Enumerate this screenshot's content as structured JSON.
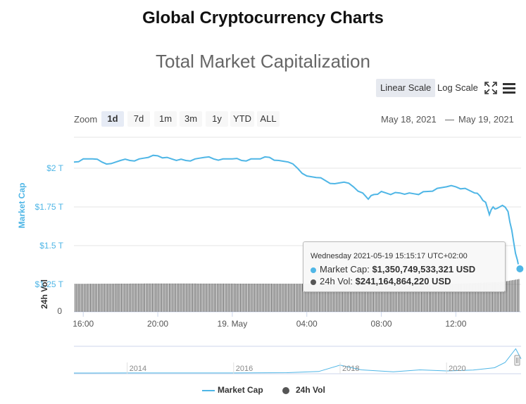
{
  "header": {
    "title": "Global Cryptocurrency Charts"
  },
  "toolbar": {
    "linear_label": "Linear Scale",
    "log_label": "Log Scale",
    "fullscreen_icon": "fullscreen-icon",
    "menu_icon": "hamburger-menu-icon"
  },
  "zoom": {
    "label": "Zoom",
    "buttons": [
      "1d",
      "7d",
      "1m",
      "3m",
      "1y",
      "YTD",
      "ALL"
    ],
    "selected": "1d"
  },
  "range": {
    "from": "May 18, 2021",
    "to": "May 19, 2021",
    "separator": "—"
  },
  "tooltip": {
    "date": "Wednesday 2021-05-19 15:15:17 UTC+02:00",
    "market_cap_label": "Market Cap:",
    "market_cap_value": "$1,350,749,533,321 USD",
    "vol_label": "24h Vol:",
    "vol_value": "$241,164,864,220 USD"
  },
  "legend": {
    "market_cap": "Market Cap",
    "vol": "24h Vol"
  },
  "colors": {
    "market_cap": "#4fb6e6",
    "volume": "#555555"
  },
  "chart_data": {
    "type": "line",
    "title": "Total Market Capitalization",
    "ylabel": "Market Cap",
    "ylabel2": "24h Vol",
    "y_ticks": [
      "$1.25 T",
      "$1.5 T",
      "$1.75 T",
      "$2 T"
    ],
    "y2_ticks": [
      "0"
    ],
    "x_ticks": [
      "16:00",
      "20:00",
      "19. May",
      "04:00",
      "08:00",
      "12:00"
    ],
    "x_tick_hours": [
      16,
      20,
      24,
      28,
      32,
      36
    ],
    "x_range_hours": [
      15.5,
      39.5
    ],
    "ylim_T": [
      1.2,
      2.2
    ],
    "series": [
      {
        "name": "Market Cap",
        "unit": "T USD",
        "x_hours": [
          15.5,
          16.0,
          16.5,
          17.0,
          17.5,
          18.0,
          18.5,
          19.0,
          19.5,
          20.0,
          20.5,
          21.0,
          21.5,
          22.0,
          22.5,
          23.0,
          23.5,
          24.0,
          24.5,
          25.0,
          25.5,
          26.0,
          26.5,
          27.0,
          27.5,
          28.0,
          28.5,
          29.0,
          29.5,
          30.0,
          30.5,
          31.0,
          31.3,
          31.6,
          32.0,
          32.5,
          33.0,
          33.5,
          34.0,
          34.5,
          35.0,
          35.5,
          36.0,
          36.5,
          37.0,
          37.3,
          37.6,
          37.8,
          38.0,
          38.2,
          38.5,
          38.8,
          39.0,
          39.2,
          39.4
        ],
        "values": [
          2.04,
          2.06,
          2.06,
          2.04,
          2.03,
          2.05,
          2.05,
          2.06,
          2.07,
          2.08,
          2.07,
          2.05,
          2.05,
          2.06,
          2.07,
          2.06,
          2.06,
          2.06,
          2.05,
          2.06,
          2.06,
          2.07,
          2.05,
          2.04,
          2.0,
          1.95,
          1.94,
          1.92,
          1.9,
          1.91,
          1.88,
          1.84,
          1.8,
          1.83,
          1.85,
          1.83,
          1.84,
          1.84,
          1.83,
          1.85,
          1.87,
          1.88,
          1.88,
          1.87,
          1.84,
          1.82,
          1.78,
          1.7,
          1.75,
          1.74,
          1.76,
          1.72,
          1.6,
          1.45,
          1.35
        ]
      },
      {
        "name": "24h Vol",
        "unit": "B USD",
        "x_hours": [
          15.5,
          20.0,
          24.0,
          28.0,
          32.0,
          36.0,
          38.5,
          39.4
        ],
        "values": [
          205,
          208,
          207,
          206,
          206,
          206,
          220,
          241
        ]
      }
    ]
  },
  "navigator": {
    "x_ticks": [
      "2014",
      "2016",
      "2018",
      "2020"
    ],
    "x_years": [
      2014,
      2016,
      2018,
      2020
    ],
    "x_range_years": [
      2013.0,
      2021.4
    ],
    "series": {
      "x_years": [
        2013.0,
        2014.0,
        2015.0,
        2016.0,
        2017.0,
        2017.6,
        2018.0,
        2018.4,
        2019.0,
        2019.5,
        2020.0,
        2020.5,
        2020.9,
        2021.1,
        2021.3,
        2021.4
      ],
      "values": [
        0.002,
        0.01,
        0.005,
        0.007,
        0.03,
        0.15,
        0.75,
        0.3,
        0.12,
        0.3,
        0.2,
        0.28,
        0.5,
        1.0,
        2.3,
        1.35
      ]
    }
  }
}
